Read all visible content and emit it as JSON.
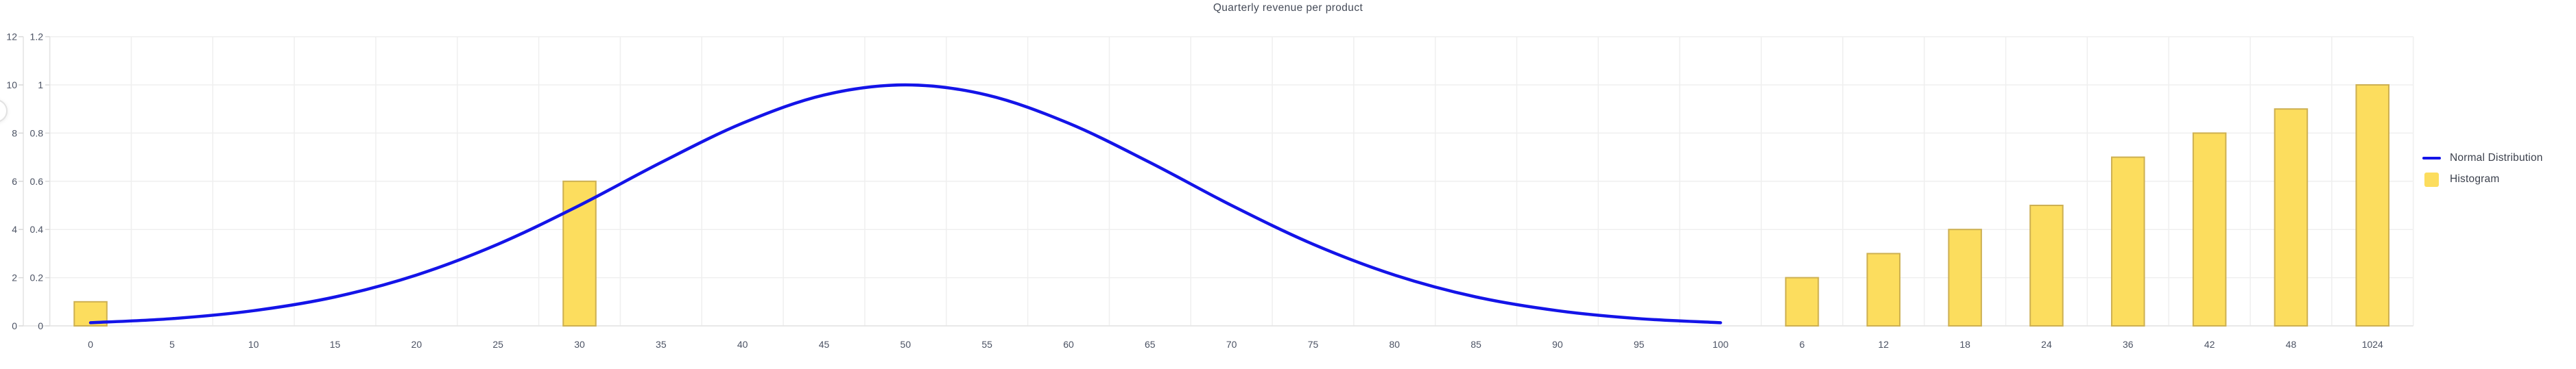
{
  "chart_data": {
    "type": "mixed",
    "title": "Quarterly revenue per product",
    "grid": true,
    "x_axis": {
      "type": "category",
      "categories": [
        "0",
        "5",
        "10",
        "15",
        "20",
        "25",
        "30",
        "35",
        "40",
        "45",
        "50",
        "55",
        "60",
        "65",
        "70",
        "75",
        "80",
        "85",
        "90",
        "95",
        "100",
        "6",
        "12",
        "18",
        "24",
        "36",
        "42",
        "48",
        "1024"
      ]
    },
    "y_axis_outer": {
      "position": "left",
      "min": 0,
      "max": 12,
      "tick_labels": [
        "0",
        "2",
        "4",
        "6",
        "8",
        "10",
        "12"
      ]
    },
    "y_axis_inner": {
      "position": "left",
      "min": 0,
      "max": 1.2,
      "tick_labels": [
        "0",
        "0.2",
        "0.4",
        "0.6",
        "0.8",
        "1",
        "1.2"
      ]
    },
    "series": [
      {
        "name": "Normal Distribution",
        "type": "line",
        "smooth": true,
        "color": "#1414e8",
        "y_axis": "inner",
        "data": [
          [
            "0",
            0.013
          ],
          [
            "5",
            0.03
          ],
          [
            "10",
            0.063
          ],
          [
            "15",
            0.12
          ],
          [
            "20",
            0.211
          ],
          [
            "25",
            0.339
          ],
          [
            "30",
            0.5
          ],
          [
            "35",
            0.678
          ],
          [
            "40",
            0.841
          ],
          [
            "45",
            0.958
          ],
          [
            "50",
            1
          ],
          [
            "55",
            0.958
          ],
          [
            "60",
            0.841
          ],
          [
            "65",
            0.678
          ],
          [
            "70",
            0.5
          ],
          [
            "75",
            0.339
          ],
          [
            "80",
            0.211
          ],
          [
            "85",
            0.12
          ],
          [
            "90",
            0.063
          ],
          [
            "95",
            0.03
          ],
          [
            "100",
            0.013
          ]
        ]
      },
      {
        "name": "Histogram",
        "type": "bar",
        "color": "#fcdd5e",
        "border_color": "#cdb052",
        "y_axis": "outer",
        "data": [
          [
            "0",
            1
          ],
          [
            "6",
            2
          ],
          [
            "12",
            3
          ],
          [
            "18",
            4
          ],
          [
            "24",
            5
          ],
          [
            "30",
            6
          ],
          [
            "36",
            7
          ],
          [
            "42",
            8
          ],
          [
            "48",
            9
          ],
          [
            "1024",
            10
          ]
        ]
      }
    ],
    "legend": {
      "position": "right",
      "items": [
        {
          "label": "Normal Distribution",
          "type": "line",
          "color": "#1414e8"
        },
        {
          "label": "Histogram",
          "type": "bar",
          "color": "#fcdd5e"
        }
      ]
    },
    "colors": {
      "grid_line": "#efefef",
      "axis_line": "#e4e4e4",
      "tick": "#d9d9d9",
      "axis_text": "#4b5263",
      "title_text": "#454b58"
    }
  }
}
